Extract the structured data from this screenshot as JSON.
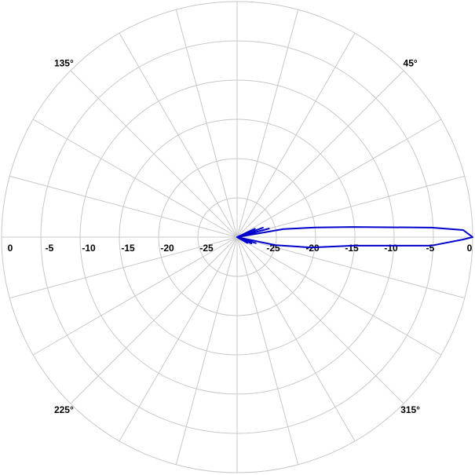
{
  "chart_data": {
    "type": "polar",
    "rlim": [
      -30,
      0
    ],
    "rticks": [
      -25,
      -20,
      -15,
      -10,
      -5,
      0
    ],
    "thetaticks": [
      {
        "value": 45,
        "label": "45°"
      },
      {
        "value": 135,
        "label": "135°"
      },
      {
        "value": 225,
        "label": "225°"
      },
      {
        "value": 315,
        "label": "315°"
      }
    ],
    "theta_gridlines": [
      0,
      15,
      30,
      45,
      60,
      75,
      90,
      105,
      120,
      135,
      150,
      165,
      180,
      195,
      210,
      225,
      240,
      255,
      270,
      285,
      300,
      315,
      330,
      345
    ],
    "grid": true,
    "color": "#0000cc",
    "theta": [
      -40,
      -30,
      -27,
      -24,
      -21,
      -18,
      -15,
      -12,
      -11.8,
      -8,
      -4.2,
      -2.5,
      -0.6,
      0,
      1.8,
      2.8,
      5,
      7,
      9.8,
      12,
      15,
      17,
      20,
      22,
      25,
      28,
      40
    ],
    "values": [
      -30,
      -28.5,
      -30,
      -28,
      -30,
      -27.5,
      -30,
      -29,
      -25,
      -20.5,
      -15.2,
      -5.2,
      -1.2,
      0,
      -1.2,
      -5.2,
      -15.2,
      -20,
      -24,
      -30,
      -25.8,
      -30,
      -26.5,
      -30,
      -27.5,
      -30,
      -30
    ]
  }
}
